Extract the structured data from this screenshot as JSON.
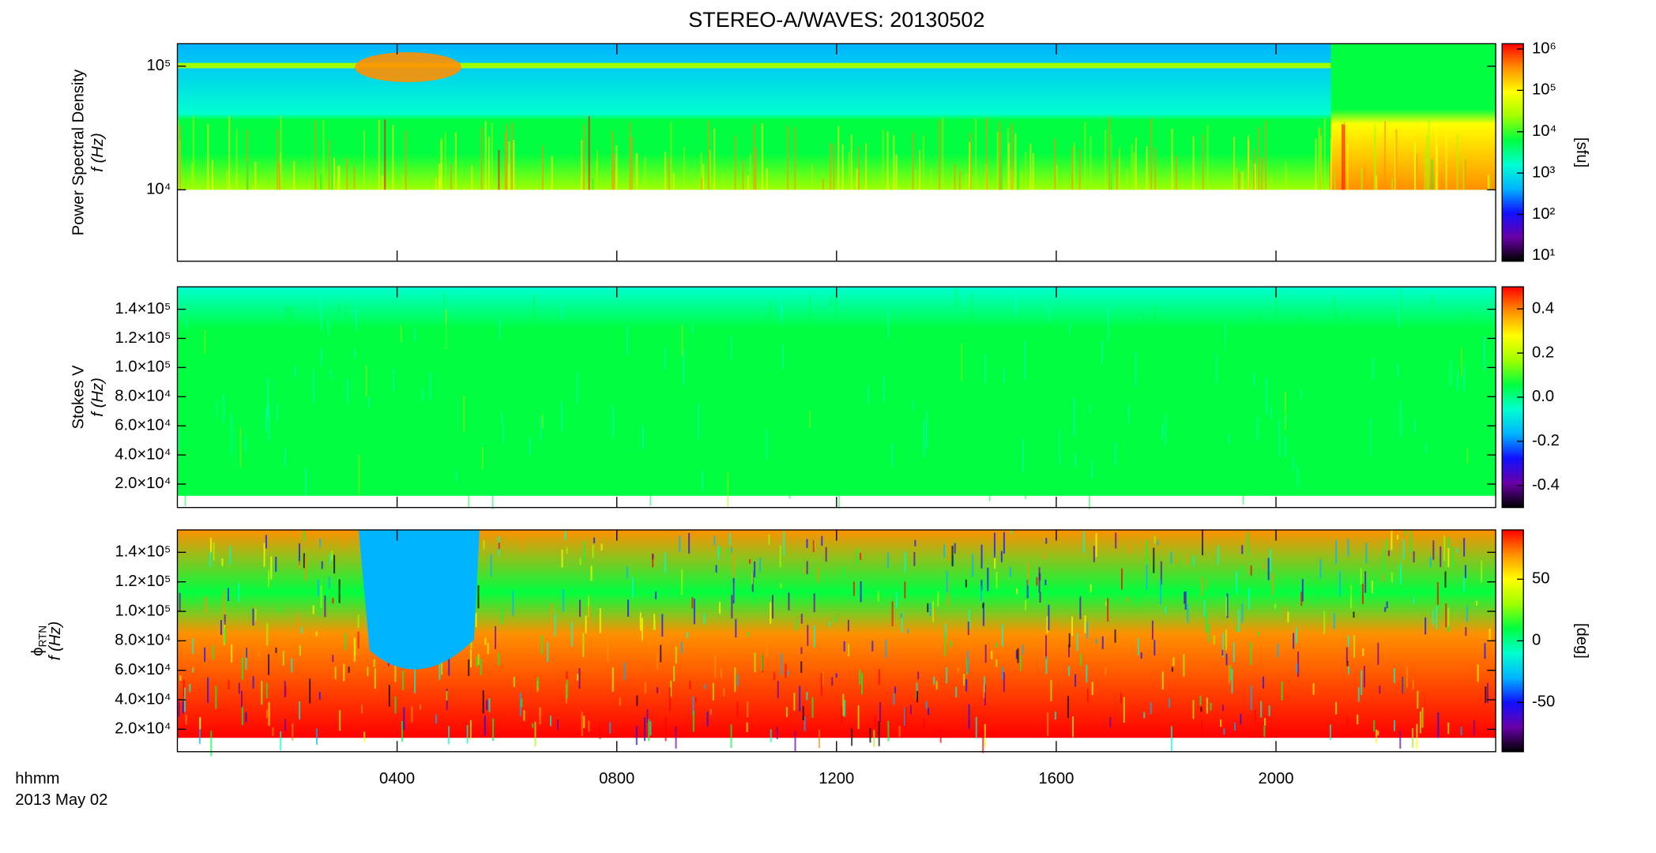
{
  "title": "STEREO-A/WAVES: 20130502",
  "xaxis": {
    "label": "hhmm",
    "date": "2013 May 02",
    "xlim": [
      0,
      24
    ],
    "xticks": [
      {
        "value": 4,
        "label": "0400"
      },
      {
        "value": 8,
        "label": "0800"
      },
      {
        "value": 12,
        "label": "1200"
      },
      {
        "value": 16,
        "label": "1600"
      },
      {
        "value": 20,
        "label": "2000"
      }
    ]
  },
  "chart_data": [
    {
      "type": "heatmap",
      "ylabel": [
        "Power Spectral Density",
        "f (Hz)"
      ],
      "ylog": true,
      "ylim": [
        2640,
        152000
      ],
      "yticks": [
        {
          "value": 10000,
          "label": "10⁴"
        },
        {
          "value": 100000,
          "label": "10⁵"
        }
      ],
      "colorbar": {
        "label": "[sfu]",
        "clog": true,
        "clim": [
          7.4,
          1340000
        ],
        "cticks": [
          {
            "value": 10,
            "label": "10¹"
          },
          {
            "value": 100,
            "label": "10²"
          },
          {
            "value": 1000,
            "label": "10³"
          },
          {
            "value": 10000,
            "label": "10⁴"
          },
          {
            "value": 100000,
            "label": "10⁵"
          },
          {
            "value": 1000000,
            "label": "10⁶"
          }
        ]
      }
    },
    {
      "type": "heatmap",
      "ylabel": [
        "Stokes V",
        "f (Hz)"
      ],
      "ylog": false,
      "ylim": [
        3900,
        155400
      ],
      "yticks": [
        {
          "value": 20000,
          "label": "2.0×10⁴"
        },
        {
          "value": 40000,
          "label": "4.0×10⁴"
        },
        {
          "value": 60000,
          "label": "6.0×10⁴"
        },
        {
          "value": 80000,
          "label": "8.0×10⁴"
        },
        {
          "value": 100000,
          "label": "1.0×10⁵"
        },
        {
          "value": 120000,
          "label": "1.2×10⁵"
        },
        {
          "value": 140000,
          "label": "1.4×10⁵"
        }
      ],
      "colorbar": {
        "clog": false,
        "clim": [
          -0.5,
          0.5
        ],
        "cticks": [
          -0.4,
          -0.2,
          {
            "value": 0,
            "label": "0.0"
          },
          0.2,
          0.4
        ]
      }
    },
    {
      "type": "heatmap",
      "ylabel": [
        "ϕ",
        "RTN",
        "f (Hz)"
      ],
      "ylog": false,
      "ylim": [
        4800,
        155200
      ],
      "yticks": [
        {
          "value": 20000,
          "label": "2.0×10⁴"
        },
        {
          "value": 40000,
          "label": "4.0×10⁴"
        },
        {
          "value": 60000,
          "label": "6.0×10⁴"
        },
        {
          "value": 80000,
          "label": "8.0×10⁴"
        },
        {
          "value": 100000,
          "label": "1.0×10⁵"
        },
        {
          "value": 120000,
          "label": "1.2×10⁵"
        },
        {
          "value": 140000,
          "label": "1.4×10⁵"
        }
      ],
      "colorbar": {
        "label": "[deg]",
        "clog": false,
        "clim": [
          -90,
          90
        ],
        "cticks": [
          -50,
          0,
          50
        ]
      }
    }
  ],
  "colormap": [
    "#000000",
    "#6a00a8",
    "#1010ff",
    "#00b4ff",
    "#00ffd0",
    "#00ff40",
    "#a0ff00",
    "#ffff00",
    "#ff9000",
    "#ff0000"
  ]
}
